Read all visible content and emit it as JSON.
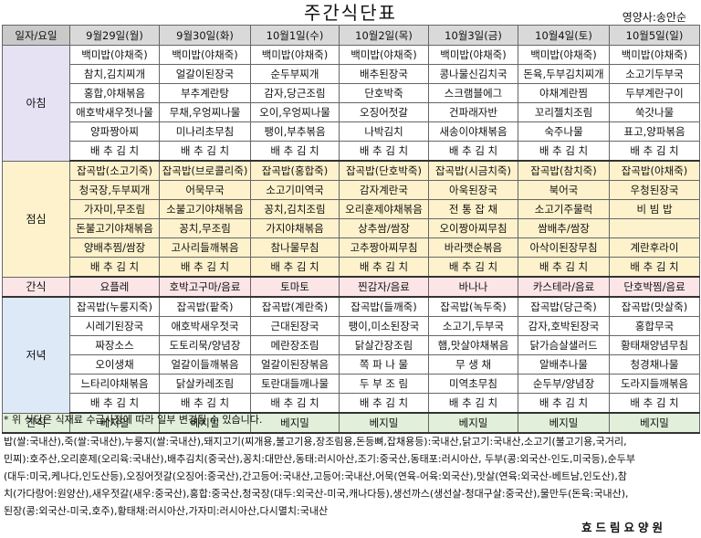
{
  "header": {
    "title": "주간식단표",
    "nutritionist": "영양사:송안순"
  },
  "columns": [
    "일자/요일",
    "9월29일(월)",
    "9월30일(화)",
    "10월1일(수)",
    "10월2일(목)",
    "10월3일(금)",
    "10월4일(토)",
    "10월5일(일)"
  ],
  "meals": [
    {
      "label": "아침",
      "rows": [
        [
          "백미밥(야채죽)",
          "백미밥(야채죽)",
          "백미밥(야채죽)",
          "백미밥(야채죽)",
          "백미밥(야채죽)",
          "백미밥(야채죽)",
          "백미밥(야채죽)"
        ],
        [
          "참치,김치찌개",
          "얼갈이된장국",
          "순두부찌개",
          "배추된장국",
          "콩나물신김치국",
          "돈육,두부김치찌개",
          "소고기두부국"
        ],
        [
          "홍합,야채볶음",
          "부추계란탕",
          "감자,당근조림",
          "단호박죽",
          "스크램블에그",
          "야채계란찜",
          "두부계란구이"
        ],
        [
          "애호박새우젓나물",
          "무채,우엉찌나물",
          "오이,우엉찌나물",
          "오징어젓갈",
          "건파래자반",
          "꼬리젤치조림",
          "쑥갓나물"
        ],
        [
          "양파짱아찌",
          "미나리초무침",
          "팽이,부추볶음",
          "나박김치",
          "새송이야채볶음",
          "숙주나물",
          "표고,양파볶음"
        ],
        [
          "배 추 김 치",
          "배 추 김 치",
          "배 추 김 치",
          "배 추 김 치",
          "배 추 김 치",
          "배 추 김 치",
          "배 추 김 치"
        ]
      ]
    },
    {
      "label": "점심",
      "rows": [
        [
          "잡곡밥(소고기죽)",
          "잡곡밥(브로콜리죽)",
          "잡곡밥(홍합죽)",
          "잡곡밥(단호박죽)",
          "잡곡밥(시금치죽)",
          "잡곡밥(참치죽)",
          "잡곡밥(야채죽)"
        ],
        [
          "청국장,두부찌개",
          "어묵무국",
          "소고기미역국",
          "감자계란국",
          "아욱된장국",
          "북어국",
          "우청된장국"
        ],
        [
          "가자미,무조림",
          "소불고기야채볶음",
          "꽁치,김치조림",
          "오리훈제야채볶음",
          "전 통 잡 채",
          "소고기주물럭",
          "비 빔 밥"
        ],
        [
          "돈불고기야채볶음",
          "꽁치,무조림",
          "가지야채볶음",
          "상추쌈/쌈장",
          "오이짱아찌무침",
          "쌈배추/쌈장",
          ""
        ],
        [
          "양배추찜/쌈장",
          "고사리들깨볶음",
          "참나물무침",
          "고추짱아찌무침",
          "바라깻순볶음",
          "아삭이된장무침",
          "계란후라이"
        ],
        [
          "배 추 김 치",
          "배 추 김 치",
          "배 추 김 치",
          "배 추 김 치",
          "배 추 김 치",
          "배 추 김 치",
          "배 추 김 치"
        ]
      ]
    },
    {
      "label": "간식",
      "rows": [
        [
          "요플레",
          "호박고구마/음료",
          "토마토",
          "찐감자/음료",
          "바나나",
          "카스테라/음료",
          "단호박찜/음료"
        ]
      ]
    },
    {
      "label": "저녁",
      "rows": [
        [
          "잡곡밥(누룽지죽)",
          "잡곡밥(팥죽)",
          "잡곡밥(계란죽)",
          "잡곡밥(들깨죽)",
          "잡곡밥(녹두죽)",
          "잡곡밥(당근죽)",
          "잡곡밥(맛살죽)"
        ],
        [
          "시레기된장국",
          "애호박새우젓국",
          "근대된장국",
          "팽이,미소된장국",
          "소고기,두부국",
          "감자,호박된장국",
          "홍합무국"
        ],
        [
          "짜장소스",
          "도토리묵/양념장",
          "메란장조림",
          "닭살간장조림",
          "햄,맛살야채볶음",
          "닭가슴살샐러드",
          "황태채양념무침"
        ],
        [
          "오이생채",
          "얼갈이들깨볶음",
          "얼갈이된장볶음",
          "쪽 파 나 물",
          "무 생 채",
          "알배추나물",
          "청경채나물"
        ],
        [
          "느타리야채볶음",
          "닭살카레조림",
          "토란대들깨나물",
          "두 부 조 림",
          "미역초무침",
          "순두부/양념장",
          "도라지들깨볶음"
        ],
        [
          "배 추 김 치",
          "배 추 김 치",
          "배 추 김 치",
          "배 추 김 치",
          "배 추 김 치",
          "배 추 김 치",
          "배 추 김 치"
        ]
      ]
    },
    {
      "label": "간식",
      "rows": [
        [
          "베지밀",
          "베지밀",
          "베지밀",
          "베지밀",
          "베지밀",
          "베지밀",
          "베지밀"
        ]
      ]
    }
  ],
  "notice": "* 위 식단은 식재료 수급사정에 따라 일부 변경될 수 있습니다.",
  "origin_lines": [
    "   밥(쌀:국내산),죽(쌀:국내산),누룽지(쌀:국내산),돼지고기(찌개용,불고기용,장조림용,돈등뼈,잡채용등):국내산,닭고기:국내산,소고기(불고기용,국거리,",
    "민찌):호주산,오리훈제(오리육:국내산),배추김치(중국산),꽁치:대만산,동태:러시아산,조기:중국산,동태포:러시아산, 두부(콩:외국산-인도,미국등),순두부",
    "(대두:미국,케나다,인도산등),오징어젓갈(오징어:중국산),간고등어:국내산,고등어:국내산,어묵(연육-어육:외국산),맛살(연육:외국산-베트남,인도산),참",
    "치(가다랑어:원양산),새우젓갈(새우:중국산),홍합:중국산,청국장(대두:외국산-미국,캐나다등),생선까스(생선살-청대구살:중국산),물만두(돈육:국내산),",
    "된장(콩:외국산-미국,호주),황태채:러시아산,가자미:러시아산,다시멸치:국내산"
  ],
  "footer": "효드림요양원"
}
